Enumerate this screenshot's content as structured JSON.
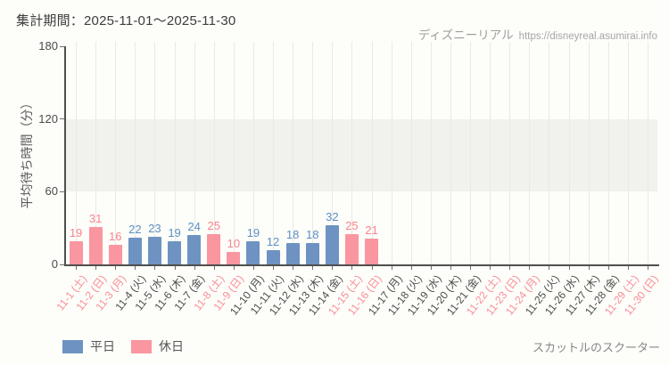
{
  "header": {
    "period_label": "集計期間：2025-11-01～2025-11-30",
    "brand": "ディズニーリアル",
    "url": "https://disneyreal.asumirai.info"
  },
  "footer": {
    "attraction": "スカットルのスクーター"
  },
  "colors": {
    "weekday_bar": "#6e93c2",
    "holiday_bar": "#f9969f",
    "weekday_value_label": "#5e8fc4",
    "holiday_value_label": "#f9848f",
    "weekday_tick_label": "#4d4d4d",
    "holiday_tick_label": "#f98e98",
    "axis": "#4f4f4f",
    "tick": "#6f6f6f",
    "gridline": "#e9e9e6",
    "shaded_band": "#f1f1ee",
    "background": "#fdfdf9"
  },
  "chart_data": {
    "type": "bar",
    "title": "集計期間：2025-11-01～2025-11-30",
    "ylabel": "平均待ち時間（分）",
    "xlabel": "",
    "ylim": [
      0,
      180
    ],
    "yticks": [
      0,
      60,
      120,
      180
    ],
    "shaded_band_y": [
      60,
      120
    ],
    "grid": "vertical",
    "legend_position": "bottom-left",
    "legend": [
      {
        "label": "平日",
        "series_key": "weekday"
      },
      {
        "label": "休日",
        "series_key": "holiday"
      }
    ],
    "categories": [
      "11-1 (土)",
      "11-2 (日)",
      "11-3 (月)",
      "11-4 (火)",
      "11-5 (水)",
      "11-6 (木)",
      "11-7 (金)",
      "11-8 (土)",
      "11-9 (日)",
      "11-10 (月)",
      "11-11 (火)",
      "11-12 (水)",
      "11-13 (木)",
      "11-14 (金)",
      "11-15 (土)",
      "11-16 (日)",
      "11-17 (月)",
      "11-18 (火)",
      "11-19 (水)",
      "11-20 (木)",
      "11-21 (金)",
      "11-22 (土)",
      "11-23 (日)",
      "11-24 (月)",
      "11-25 (火)",
      "11-26 (水)",
      "11-27 (木)",
      "11-28 (金)",
      "11-29 (土)",
      "11-30 (日)"
    ],
    "day_type": [
      "holiday",
      "holiday",
      "holiday",
      "weekday",
      "weekday",
      "weekday",
      "weekday",
      "holiday",
      "holiday",
      "weekday",
      "weekday",
      "weekday",
      "weekday",
      "weekday",
      "holiday",
      "holiday",
      "weekday",
      "weekday",
      "weekday",
      "weekday",
      "weekday",
      "holiday",
      "holiday",
      "holiday",
      "weekday",
      "weekday",
      "weekday",
      "weekday",
      "holiday",
      "holiday"
    ],
    "values": [
      19,
      31,
      16,
      22,
      23,
      19,
      24,
      25,
      10,
      19,
      12,
      18,
      18,
      32,
      25,
      21,
      null,
      null,
      null,
      null,
      null,
      null,
      null,
      null,
      null,
      null,
      null,
      null,
      null,
      null
    ]
  }
}
